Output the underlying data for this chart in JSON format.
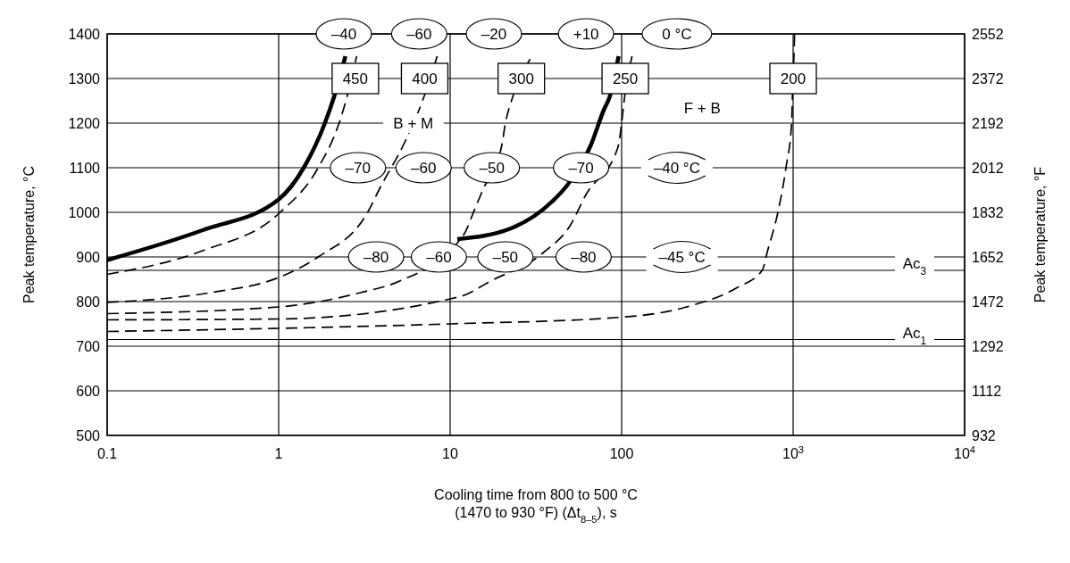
{
  "chart_data": {
    "type": "line",
    "xlabel": "Cooling time from 800 to 500 °C\n(1470 to 930 °F) (Δt$_{8–5}$), s",
    "ylabel": "Peak temperature, °C",
    "y2label": "Peak temperature, °F",
    "log": "x",
    "xlim": [
      0.1,
      10000
    ],
    "xticks": [
      0.1,
      1,
      10,
      100,
      {
        "value": 1000,
        "label": "10$^{3}$"
      },
      {
        "value": 10000,
        "label": "10$^{4}$"
      }
    ],
    "ylim": [
      500,
      1400
    ],
    "yticks": [
      500,
      600,
      700,
      800,
      900,
      1000,
      1100,
      1200,
      1300,
      1400
    ],
    "y2lim": [
      932,
      2552
    ],
    "y2ticks": [
      932,
      1112,
      1292,
      1472,
      1652,
      1832,
      2012,
      2192,
      2372,
      2552
    ],
    "grid": true,
    "series": [
      {
        "color": "#000000",
        "line_style": "solid",
        "x": [
          0.1,
          0.36,
          1,
          1.4,
          1.86,
          2.1,
          2.45
        ],
        "values": [
          893,
          960,
          1029,
          1100,
          1200,
          1258,
          1350
        ]
      },
      {
        "color": "#000000",
        "line_style": "dashed",
        "x": [
          0.1,
          0.36,
          1,
          1.7,
          2.25,
          2.5,
          2.85
        ],
        "values": [
          861,
          914,
          997,
          1100,
          1200,
          1258,
          1350
        ]
      },
      {
        "color": "#000000",
        "line_style": "dashed",
        "x": [
          0.1,
          0.4,
          1,
          1.7,
          3.3,
          3.9,
          5.4,
          6.9,
          8.4
        ],
        "values": [
          798,
          820,
          854,
          900,
          1000,
          1055,
          1155,
          1250,
          1350
        ]
      },
      {
        "color": "#000000",
        "line_style": "dashed",
        "x": [
          0.1,
          1,
          3,
          5,
          12,
          14,
          15.5,
          20,
          21,
          23,
          30
        ],
        "values": [
          773,
          788,
          820,
          845,
          950,
          1010,
          1050,
          1150,
          1200,
          1255,
          1350
        ]
      },
      {
        "color": "#000000",
        "line_style": "solid",
        "x": [
          11,
          22.6,
          39.5,
          48,
          66,
          79,
          85,
          96
        ],
        "values": [
          940,
          964,
          1025,
          1060,
          1150,
          1231,
          1258,
          1350
        ]
      },
      {
        "color": "#000000",
        "line_style": "dashed",
        "x": [
          0.1,
          1,
          11.6,
          17,
          35,
          50,
          62,
          95,
          100,
          104,
          115
        ],
        "values": [
          759,
          761,
          812,
          845,
          910,
          970,
          1040,
          1145,
          1200,
          1258,
          1350
        ]
      },
      {
        "color": "#000000",
        "line_style": "dashed",
        "x": [
          0.1,
          1,
          10,
          100,
          234,
          470,
          660,
          710,
          815,
          910,
          980,
          990,
          1010,
          1020
        ],
        "values": [
          733,
          740,
          750,
          765,
          787,
          831,
          870,
          914,
          1000,
          1102,
          1200,
          1258,
          1345,
          1400
        ]
      }
    ],
    "ref_lines": [
      {
        "axis": "y",
        "value": 870,
        "label": "Ac$_{3}$",
        "color": "#000000"
      },
      {
        "axis": "y",
        "value": 715,
        "label": "Ac$_{1}$",
        "color": "#000000"
      }
    ],
    "annotations": [
      "–40",
      "–60",
      "–20",
      "+10",
      "0 °C",
      "450",
      {
        "text": "400",
        "x": 7.1,
        "y": 1300
      },
      {
        "text": "300",
        "x": 26,
        "y": 1300
      },
      {
        "text": "250",
        "x": 105,
        "y": 1300
      },
      "200",
      "–70",
      "–60",
      {
        "text": "–50",
        "x": 17.5,
        "y": 1100
      },
      {
        "text": "–70",
        "x": 58,
        "y": 1100
      },
      "–40 °C",
      "–80",
      {
        "text": "–60",
        "x": 8.6,
        "y": 900
      },
      "–50",
      "–80",
      "–45 °C",
      {
        "text": "B + M",
        "x": 6.1,
        "y": 1200
      },
      "F + B"
    ]
  }
}
